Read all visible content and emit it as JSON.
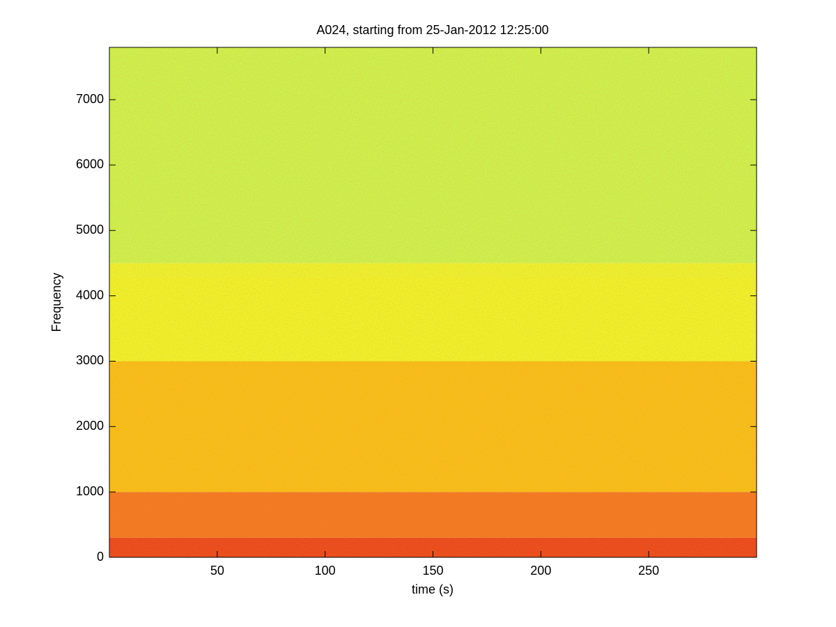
{
  "chart_data": {
    "type": "spectrogram",
    "title": "A024, starting from 25-Jan-2012 12:25:00",
    "xlabel": "time (s)",
    "ylabel": "Frequency",
    "xlim": [
      0,
      300
    ],
    "ylim": [
      0,
      7800
    ],
    "xticks": [
      50,
      100,
      150,
      200,
      250
    ],
    "yticks": [
      0,
      1000,
      2000,
      3000,
      4000,
      5000,
      6000,
      7000
    ],
    "bands": [
      {
        "from": 0,
        "to": 300,
        "color": "#ea4a1c"
      },
      {
        "from": 300,
        "to": 1000,
        "color": "#f27a22"
      },
      {
        "from": 1000,
        "to": 3000,
        "color": "#f6bf18"
      },
      {
        "from": 3000,
        "to": 4500,
        "color": "#eef22a"
      },
      {
        "from": 4500,
        "to": 7800,
        "color": "#cef24a"
      }
    ]
  }
}
